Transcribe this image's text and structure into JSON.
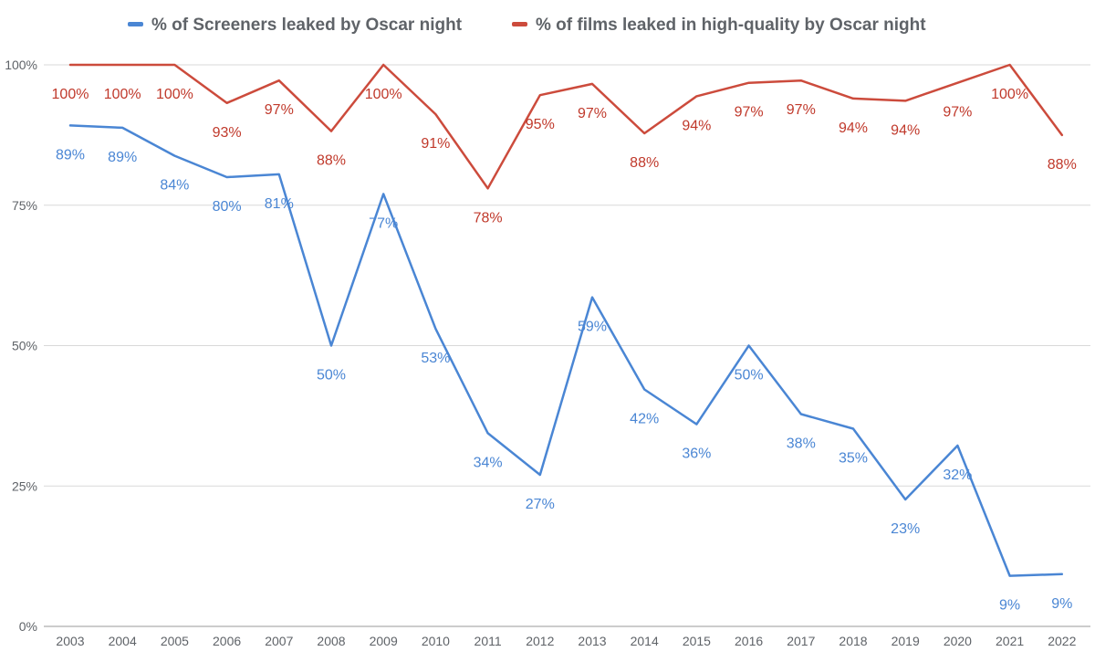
{
  "chart_data": {
    "type": "line",
    "x": [
      "2003",
      "2004",
      "2005",
      "2006",
      "2007",
      "2008",
      "2009",
      "2010",
      "2011",
      "2012",
      "2013",
      "2014",
      "2015",
      "2016",
      "2017",
      "2018",
      "2019",
      "2020",
      "2021",
      "2022"
    ],
    "ylim": [
      0,
      100
    ],
    "yticks": [
      {
        "value": 0,
        "label": "0%"
      },
      {
        "value": 25,
        "label": "25%"
      },
      {
        "value": 50,
        "label": "50%"
      },
      {
        "value": 75,
        "label": "75%"
      },
      {
        "value": 100,
        "label": "100%"
      }
    ],
    "grid": true,
    "legend_position": "top",
    "series": [
      {
        "name": "% of Screeners leaked by Oscar night",
        "color": "#4a86d4",
        "label_color": "#4a86d4",
        "values": [
          89.2,
          88.8,
          83.8,
          80.0,
          80.5,
          50.0,
          77.0,
          53.0,
          34.4,
          27.0,
          58.6,
          42.2,
          36.0,
          50.0,
          37.8,
          35.2,
          22.6,
          32.2,
          9.0,
          9.3
        ],
        "labels": [
          "89%",
          "89%",
          "84%",
          "80%",
          "81%",
          "50%",
          "77%",
          "53%",
          "34%",
          "27%",
          "59%",
          "42%",
          "36%",
          "50%",
          "38%",
          "35%",
          "23%",
          "32%",
          "9%",
          "9%"
        ]
      },
      {
        "name": "% of films leaked in high-quality by Oscar night",
        "color": "#cc4b3c",
        "label_color": "#c0392b",
        "values": [
          100,
          100,
          100,
          93.2,
          97.2,
          88.2,
          100,
          91.2,
          78.0,
          94.6,
          96.6,
          87.8,
          94.4,
          96.8,
          97.2,
          94.0,
          93.6,
          96.8,
          100,
          87.5
        ],
        "labels": [
          "100%",
          "100%",
          "100%",
          "93%",
          "97%",
          "88%",
          "100%",
          "91%",
          "78%",
          "95%",
          "97%",
          "88%",
          "94%",
          "97%",
          "97%",
          "94%",
          "94%",
          "97%",
          "100%",
          "88%"
        ]
      }
    ]
  }
}
